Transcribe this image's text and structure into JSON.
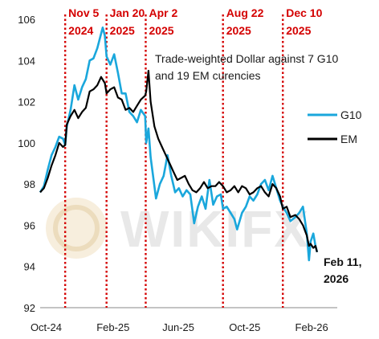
{
  "chart_data": {
    "type": "line",
    "title": "",
    "annotation_lines": [
      "Trade-weighted Dollar against 7 G10",
      "and 19 EM curencies"
    ],
    "ylim": [
      92,
      106
    ],
    "yticks": [
      92,
      94,
      96,
      98,
      100,
      102,
      104,
      106
    ],
    "xlim": [
      "2024-09-20",
      "2026-03-20"
    ],
    "xticks": [
      {
        "date": "2024-10-01",
        "label": "Oct-24"
      },
      {
        "date": "2025-02-01",
        "label": "Feb-25"
      },
      {
        "date": "2025-06-01",
        "label": "Jun-25"
      },
      {
        "date": "2025-10-01",
        "label": "Oct-25"
      },
      {
        "date": "2026-02-01",
        "label": "Feb-26"
      }
    ],
    "events": [
      {
        "date": "2024-11-05",
        "label1": "Nov 5",
        "label2": "2024"
      },
      {
        "date": "2025-01-20",
        "label1": "Jan 20",
        "label2": "2025"
      },
      {
        "date": "2025-04-02",
        "label1": "Apr 2",
        "label2": "2025"
      },
      {
        "date": "2025-08-22",
        "label1": "Aug 22",
        "label2": "2025"
      },
      {
        "date": "2025-12-10",
        "label1": "Dec 10",
        "label2": "2025"
      }
    ],
    "end_label": [
      "Feb 11,",
      "2026"
    ],
    "event_color": "#d40000",
    "series": [
      {
        "name": "G10",
        "color": "#1aa7dc",
        "points": [
          [
            "2024-09-20",
            97.6
          ],
          [
            "2024-09-27",
            97.9
          ],
          [
            "2024-10-04",
            98.7
          ],
          [
            "2024-10-11",
            99.4
          ],
          [
            "2024-10-18",
            99.8
          ],
          [
            "2024-10-25",
            100.3
          ],
          [
            "2024-11-01",
            100.2
          ],
          [
            "2024-11-05",
            99.9
          ],
          [
            "2024-11-08",
            100.8
          ],
          [
            "2024-11-15",
            101.6
          ],
          [
            "2024-11-22",
            102.8
          ],
          [
            "2024-11-29",
            102.1
          ],
          [
            "2024-12-06",
            102.7
          ],
          [
            "2024-12-13",
            103.1
          ],
          [
            "2024-12-20",
            104.0
          ],
          [
            "2024-12-27",
            104.1
          ],
          [
            "2025-01-03",
            104.6
          ],
          [
            "2025-01-10",
            105.3
          ],
          [
            "2025-01-13",
            105.6
          ],
          [
            "2025-01-17",
            105.2
          ],
          [
            "2025-01-20",
            104.2
          ],
          [
            "2025-01-27",
            103.8
          ],
          [
            "2025-02-03",
            104.3
          ],
          [
            "2025-02-10",
            103.4
          ],
          [
            "2025-02-17",
            102.4
          ],
          [
            "2025-02-24",
            102.4
          ],
          [
            "2025-03-03",
            101.5
          ],
          [
            "2025-03-10",
            101.3
          ],
          [
            "2025-03-17",
            101.0
          ],
          [
            "2025-03-24",
            101.6
          ],
          [
            "2025-04-01",
            101.3
          ],
          [
            "2025-04-03",
            100.0
          ],
          [
            "2025-04-07",
            100.7
          ],
          [
            "2025-04-11",
            99.3
          ],
          [
            "2025-04-21",
            97.3
          ],
          [
            "2025-04-28",
            98.0
          ],
          [
            "2025-05-05",
            98.4
          ],
          [
            "2025-05-12",
            99.4
          ],
          [
            "2025-05-19",
            98.4
          ],
          [
            "2025-05-26",
            97.6
          ],
          [
            "2025-06-02",
            97.8
          ],
          [
            "2025-06-09",
            97.4
          ],
          [
            "2025-06-16",
            97.7
          ],
          [
            "2025-06-23",
            97.5
          ],
          [
            "2025-06-30",
            96.1
          ],
          [
            "2025-07-07",
            96.9
          ],
          [
            "2025-07-14",
            97.4
          ],
          [
            "2025-07-21",
            96.8
          ],
          [
            "2025-07-28",
            98.2
          ],
          [
            "2025-08-04",
            97.0
          ],
          [
            "2025-08-11",
            97.4
          ],
          [
            "2025-08-18",
            97.5
          ],
          [
            "2025-08-22",
            96.8
          ],
          [
            "2025-08-29",
            96.9
          ],
          [
            "2025-09-05",
            96.6
          ],
          [
            "2025-09-12",
            96.3
          ],
          [
            "2025-09-17",
            95.8
          ],
          [
            "2025-09-26",
            96.6
          ],
          [
            "2025-10-03",
            96.9
          ],
          [
            "2025-10-10",
            97.4
          ],
          [
            "2025-10-17",
            97.2
          ],
          [
            "2025-10-24",
            97.5
          ],
          [
            "2025-10-31",
            98.0
          ],
          [
            "2025-11-07",
            98.2
          ],
          [
            "2025-11-14",
            97.7
          ],
          [
            "2025-11-21",
            98.4
          ],
          [
            "2025-11-28",
            97.8
          ],
          [
            "2025-12-05",
            97.2
          ],
          [
            "2025-12-10",
            96.9
          ],
          [
            "2025-12-17",
            96.6
          ],
          [
            "2025-12-24",
            96.2
          ],
          [
            "2026-01-02",
            96.4
          ],
          [
            "2026-01-09",
            96.6
          ],
          [
            "2026-01-16",
            96.9
          ],
          [
            "2026-01-23",
            95.6
          ],
          [
            "2026-01-27",
            94.3
          ],
          [
            "2026-01-30",
            95.2
          ],
          [
            "2026-02-04",
            95.6
          ],
          [
            "2026-02-08",
            95.0
          ],
          [
            "2026-02-11",
            94.7
          ]
        ]
      },
      {
        "name": "EM",
        "color": "#000000",
        "points": [
          [
            "2024-09-20",
            97.6
          ],
          [
            "2024-09-27",
            97.8
          ],
          [
            "2024-10-04",
            98.3
          ],
          [
            "2024-10-11",
            98.9
          ],
          [
            "2024-10-18",
            99.4
          ],
          [
            "2024-10-25",
            100.0
          ],
          [
            "2024-11-01",
            99.8
          ],
          [
            "2024-11-05",
            99.9
          ],
          [
            "2024-11-08",
            100.9
          ],
          [
            "2024-11-15",
            101.3
          ],
          [
            "2024-11-22",
            101.6
          ],
          [
            "2024-11-29",
            101.2
          ],
          [
            "2024-12-06",
            101.5
          ],
          [
            "2024-12-13",
            101.7
          ],
          [
            "2024-12-20",
            102.5
          ],
          [
            "2024-12-27",
            102.6
          ],
          [
            "2025-01-03",
            102.8
          ],
          [
            "2025-01-10",
            103.2
          ],
          [
            "2025-01-17",
            102.9
          ],
          [
            "2025-01-20",
            102.4
          ],
          [
            "2025-01-27",
            102.6
          ],
          [
            "2025-02-03",
            102.7
          ],
          [
            "2025-02-10",
            102.2
          ],
          [
            "2025-02-17",
            102.1
          ],
          [
            "2025-02-24",
            101.6
          ],
          [
            "2025-03-03",
            101.7
          ],
          [
            "2025-03-10",
            101.5
          ],
          [
            "2025-03-17",
            101.8
          ],
          [
            "2025-03-24",
            102.1
          ],
          [
            "2025-04-01",
            102.3
          ],
          [
            "2025-04-03",
            102.5
          ],
          [
            "2025-04-07",
            103.5
          ],
          [
            "2025-04-11",
            102.0
          ],
          [
            "2025-04-18",
            100.8
          ],
          [
            "2025-04-25",
            100.2
          ],
          [
            "2025-05-02",
            99.8
          ],
          [
            "2025-05-09",
            99.4
          ],
          [
            "2025-05-16",
            99.0
          ],
          [
            "2025-05-23",
            98.6
          ],
          [
            "2025-05-30",
            98.2
          ],
          [
            "2025-06-06",
            98.3
          ],
          [
            "2025-06-13",
            98.4
          ],
          [
            "2025-06-20",
            98.0
          ],
          [
            "2025-06-27",
            97.7
          ],
          [
            "2025-07-04",
            97.6
          ],
          [
            "2025-07-11",
            97.8
          ],
          [
            "2025-07-18",
            98.1
          ],
          [
            "2025-07-25",
            97.8
          ],
          [
            "2025-08-01",
            97.9
          ],
          [
            "2025-08-08",
            97.9
          ],
          [
            "2025-08-15",
            98.1
          ],
          [
            "2025-08-22",
            97.9
          ],
          [
            "2025-08-29",
            97.6
          ],
          [
            "2025-09-05",
            97.7
          ],
          [
            "2025-09-12",
            97.9
          ],
          [
            "2025-09-19",
            97.6
          ],
          [
            "2025-09-26",
            97.9
          ],
          [
            "2025-10-03",
            97.8
          ],
          [
            "2025-10-10",
            97.5
          ],
          [
            "2025-10-17",
            97.6
          ],
          [
            "2025-10-24",
            97.8
          ],
          [
            "2025-10-31",
            97.9
          ],
          [
            "2025-11-07",
            97.6
          ],
          [
            "2025-11-14",
            97.4
          ],
          [
            "2025-11-21",
            98.0
          ],
          [
            "2025-11-28",
            97.8
          ],
          [
            "2025-12-05",
            97.4
          ],
          [
            "2025-12-10",
            96.8
          ],
          [
            "2025-12-17",
            96.9
          ],
          [
            "2025-12-24",
            96.4
          ],
          [
            "2026-01-02",
            96.5
          ],
          [
            "2026-01-09",
            96.3
          ],
          [
            "2026-01-16",
            96.0
          ],
          [
            "2026-01-23",
            95.5
          ],
          [
            "2026-01-27",
            95.0
          ],
          [
            "2026-01-30",
            95.1
          ],
          [
            "2026-02-04",
            94.9
          ],
          [
            "2026-02-08",
            95.0
          ],
          [
            "2026-02-11",
            94.7
          ]
        ]
      }
    ]
  }
}
